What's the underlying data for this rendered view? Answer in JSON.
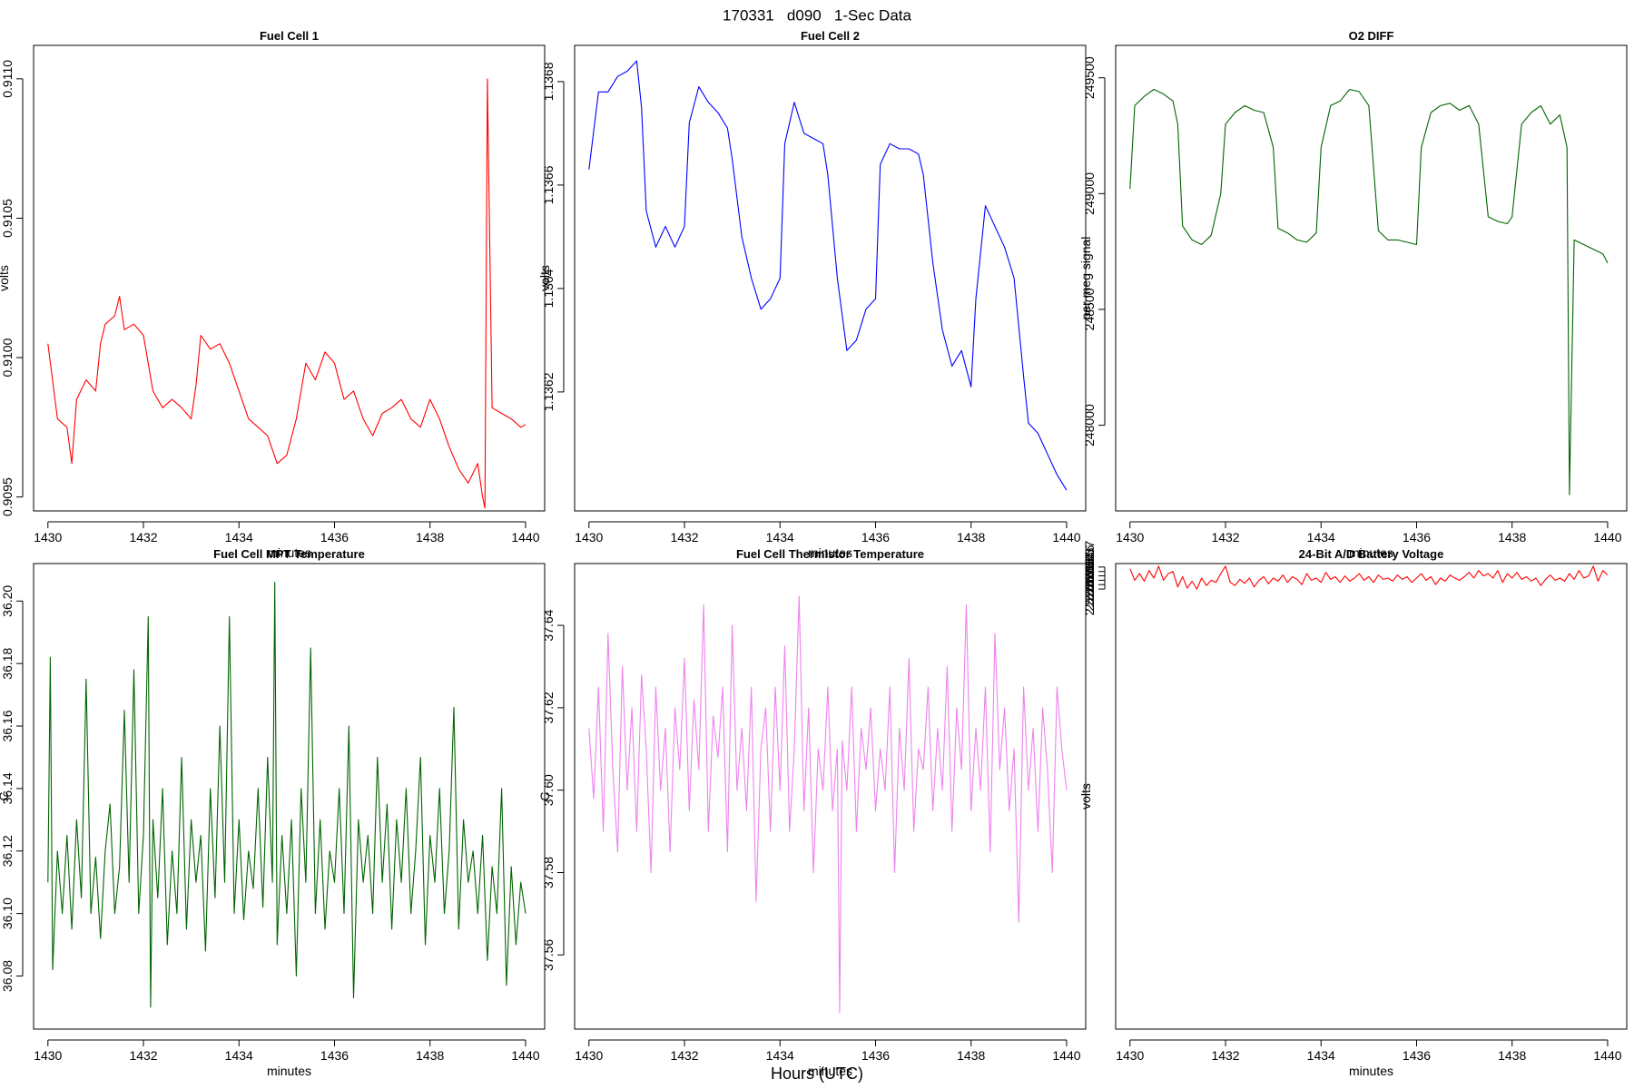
{
  "figure": {
    "title": "170331   d090   1-Sec Data",
    "xlabel": "Hours (UTC)"
  },
  "chart_data": [
    {
      "type": "line",
      "title": "Fuel Cell 1",
      "xlabel": "minutes",
      "ylabel": "volts",
      "color": "#ff0000",
      "xlim": [
        1429.7,
        1440.4
      ],
      "ylim": [
        0.90945,
        0.91112
      ],
      "xticks": [
        1430,
        1432,
        1434,
        1436,
        1438,
        1440
      ],
      "yticks": [
        0.9095,
        0.91,
        0.9105,
        0.911
      ],
      "ytick_labels": [
        "0.9095",
        "0.9100",
        "0.9105",
        "0.9110"
      ],
      "x": [
        1430.0,
        1430.2,
        1430.4,
        1430.5,
        1430.6,
        1430.8,
        1431.0,
        1431.1,
        1431.2,
        1431.4,
        1431.5,
        1431.6,
        1431.8,
        1432.0,
        1432.2,
        1432.4,
        1432.6,
        1432.8,
        1433.0,
        1433.1,
        1433.2,
        1433.4,
        1433.6,
        1433.8,
        1434.0,
        1434.2,
        1434.4,
        1434.6,
        1434.8,
        1435.0,
        1435.2,
        1435.4,
        1435.6,
        1435.8,
        1436.0,
        1436.2,
        1436.4,
        1436.6,
        1436.8,
        1437.0,
        1437.2,
        1437.4,
        1437.6,
        1437.8,
        1438.0,
        1438.2,
        1438.4,
        1438.6,
        1438.8,
        1439.0,
        1439.1,
        1439.15,
        1439.2,
        1439.3,
        1439.5,
        1439.7,
        1439.9,
        1440.0
      ],
      "y": [
        0.91005,
        0.90978,
        0.90975,
        0.90962,
        0.90985,
        0.90992,
        0.90988,
        0.91005,
        0.91012,
        0.91015,
        0.91022,
        0.9101,
        0.91012,
        0.91008,
        0.90988,
        0.90982,
        0.90985,
        0.90982,
        0.90978,
        0.9099,
        0.91008,
        0.91003,
        0.91005,
        0.90998,
        0.90988,
        0.90978,
        0.90975,
        0.90972,
        0.90962,
        0.90965,
        0.90978,
        0.90998,
        0.90992,
        0.91002,
        0.90998,
        0.90985,
        0.90988,
        0.90978,
        0.90972,
        0.9098,
        0.90982,
        0.90985,
        0.90978,
        0.90975,
        0.90985,
        0.90978,
        0.90968,
        0.9096,
        0.90955,
        0.90962,
        0.9095,
        0.90946,
        0.911,
        0.90982,
        0.9098,
        0.90978,
        0.90975,
        0.90976
      ]
    },
    {
      "type": "line",
      "title": "Fuel Cell 2",
      "xlabel": "minutes",
      "ylabel": "volts",
      "color": "#0000ff",
      "xlim": [
        1429.7,
        1440.4
      ],
      "ylim": [
        1.13597,
        1.13687
      ],
      "xticks": [
        1430,
        1432,
        1434,
        1436,
        1438,
        1440
      ],
      "yticks": [
        1.1362,
        1.1364,
        1.1366,
        1.1368
      ],
      "ytick_labels": [
        "1.1362",
        "1.1364",
        "1.1366",
        "1.1368"
      ],
      "x": [
        1430.0,
        1430.2,
        1430.4,
        1430.6,
        1430.8,
        1431.0,
        1431.1,
        1431.2,
        1431.4,
        1431.6,
        1431.8,
        1432.0,
        1432.1,
        1432.3,
        1432.5,
        1432.7,
        1432.9,
        1433.0,
        1433.2,
        1433.4,
        1433.6,
        1433.8,
        1434.0,
        1434.1,
        1434.3,
        1434.5,
        1434.7,
        1434.9,
        1435.0,
        1435.2,
        1435.4,
        1435.6,
        1435.8,
        1436.0,
        1436.1,
        1436.3,
        1436.5,
        1436.7,
        1436.9,
        1437.0,
        1437.2,
        1437.4,
        1437.6,
        1437.8,
        1438.0,
        1438.1,
        1438.3,
        1438.5,
        1438.7,
        1438.9,
        1439.1,
        1439.2,
        1439.4,
        1439.6,
        1439.8,
        1440.0
      ],
      "y": [
        1.13663,
        1.13678,
        1.13678,
        1.13681,
        1.13682,
        1.13684,
        1.13675,
        1.13655,
        1.13648,
        1.13652,
        1.13648,
        1.13652,
        1.13672,
        1.13679,
        1.13676,
        1.13674,
        1.13671,
        1.13665,
        1.1365,
        1.13642,
        1.13636,
        1.13638,
        1.13642,
        1.13668,
        1.13676,
        1.1367,
        1.13669,
        1.13668,
        1.13662,
        1.13642,
        1.13628,
        1.1363,
        1.13636,
        1.13638,
        1.13664,
        1.13668,
        1.13667,
        1.13667,
        1.13666,
        1.13662,
        1.13645,
        1.13632,
        1.13625,
        1.13628,
        1.13621,
        1.13638,
        1.13656,
        1.13652,
        1.13648,
        1.13642,
        1.13623,
        1.13614,
        1.13612,
        1.13608,
        1.13604,
        1.13601
      ]
    },
    {
      "type": "line",
      "title": "O2 DIFF",
      "xlabel": "minutes",
      "ylabel": "per meg signal",
      "color": "#006400",
      "xlim": [
        1429.7,
        1440.4
      ],
      "ylim": [
        247630,
        249640
      ],
      "xticks": [
        1430,
        1432,
        1434,
        1436,
        1438,
        1440
      ],
      "yticks": [
        248000,
        248500,
        249000,
        249500
      ],
      "ytick_labels": [
        "248000",
        "248500",
        "249000",
        "249500"
      ],
      "x": [
        1430.0,
        1430.1,
        1430.3,
        1430.5,
        1430.7,
        1430.9,
        1431.0,
        1431.1,
        1431.3,
        1431.5,
        1431.7,
        1431.9,
        1432.0,
        1432.2,
        1432.4,
        1432.6,
        1432.8,
        1433.0,
        1433.1,
        1433.3,
        1433.5,
        1433.7,
        1433.9,
        1434.0,
        1434.2,
        1434.4,
        1434.6,
        1434.8,
        1435.0,
        1435.2,
        1435.4,
        1435.6,
        1435.8,
        1436.0,
        1436.1,
        1436.3,
        1436.5,
        1436.7,
        1436.9,
        1437.1,
        1437.3,
        1437.5,
        1437.7,
        1437.9,
        1438.0,
        1438.2,
        1438.4,
        1438.6,
        1438.8,
        1439.0,
        1439.15,
        1439.2,
        1439.3,
        1439.5,
        1439.7,
        1439.9,
        1440.0
      ],
      "y": [
        249020,
        249380,
        249420,
        249450,
        249430,
        249400,
        249300,
        248860,
        248800,
        248780,
        248820,
        249000,
        249300,
        249350,
        249380,
        249360,
        249350,
        249200,
        248850,
        248830,
        248800,
        248790,
        248830,
        249200,
        249380,
        249400,
        249450,
        249440,
        249380,
        248840,
        248800,
        248800,
        248790,
        248780,
        249200,
        249350,
        249380,
        249390,
        249360,
        249380,
        249300,
        248900,
        248880,
        248870,
        248900,
        249300,
        249350,
        249380,
        249300,
        249340,
        249200,
        247700,
        248800,
        248780,
        248760,
        248740,
        248700
      ]
    },
    {
      "type": "line",
      "title": "Fuel Cell MPT Temperature",
      "xlabel": "minutes",
      "ylabel": "C",
      "color": "#006400",
      "xlim": [
        1429.7,
        1440.4
      ],
      "ylim": [
        36.063,
        36.212
      ],
      "xticks": [
        1430,
        1432,
        1434,
        1436,
        1438,
        1440
      ],
      "yticks": [
        36.08,
        36.1,
        36.12,
        36.14,
        36.16,
        36.18,
        36.2
      ],
      "ytick_labels": [
        "36.08",
        "36.10",
        "36.12",
        "36.14",
        "36.16",
        "36.18",
        "36.20"
      ],
      "x": [
        1430.0,
        1430.05,
        1430.1,
        1430.2,
        1430.3,
        1430.4,
        1430.5,
        1430.6,
        1430.7,
        1430.8,
        1430.9,
        1431.0,
        1431.1,
        1431.2,
        1431.3,
        1431.4,
        1431.5,
        1431.6,
        1431.7,
        1431.8,
        1431.9,
        1432.0,
        1432.1,
        1432.15,
        1432.2,
        1432.3,
        1432.4,
        1432.5,
        1432.6,
        1432.7,
        1432.8,
        1432.9,
        1433.0,
        1433.1,
        1433.2,
        1433.3,
        1433.4,
        1433.5,
        1433.6,
        1433.7,
        1433.8,
        1433.9,
        1434.0,
        1434.1,
        1434.2,
        1434.3,
        1434.4,
        1434.5,
        1434.6,
        1434.7,
        1434.75,
        1434.8,
        1434.9,
        1435.0,
        1435.1,
        1435.2,
        1435.3,
        1435.4,
        1435.5,
        1435.6,
        1435.7,
        1435.8,
        1435.9,
        1436.0,
        1436.1,
        1436.2,
        1436.3,
        1436.4,
        1436.5,
        1436.6,
        1436.7,
        1436.8,
        1436.9,
        1437.0,
        1437.1,
        1437.2,
        1437.3,
        1437.4,
        1437.5,
        1437.6,
        1437.7,
        1437.8,
        1437.9,
        1438.0,
        1438.1,
        1438.2,
        1438.3,
        1438.4,
        1438.5,
        1438.6,
        1438.7,
        1438.8,
        1438.9,
        1439.0,
        1439.1,
        1439.2,
        1439.3,
        1439.4,
        1439.5,
        1439.6,
        1439.7,
        1439.8,
        1439.9,
        1440.0
      ],
      "y": [
        36.11,
        36.182,
        36.082,
        36.12,
        36.1,
        36.125,
        36.095,
        36.13,
        36.105,
        36.175,
        36.1,
        36.118,
        36.092,
        36.12,
        36.135,
        36.1,
        36.115,
        36.165,
        36.11,
        36.178,
        36.1,
        36.125,
        36.195,
        36.07,
        36.13,
        36.105,
        36.14,
        36.09,
        36.12,
        36.1,
        36.15,
        36.095,
        36.13,
        36.11,
        36.125,
        36.088,
        36.14,
        36.105,
        36.16,
        36.11,
        36.195,
        36.1,
        36.13,
        36.098,
        36.12,
        36.108,
        36.14,
        36.102,
        36.15,
        36.11,
        36.206,
        36.09,
        36.125,
        36.1,
        36.13,
        36.08,
        36.14,
        36.11,
        36.185,
        36.1,
        36.13,
        36.095,
        36.12,
        36.11,
        36.14,
        36.1,
        36.16,
        36.073,
        36.13,
        36.11,
        36.125,
        36.1,
        36.15,
        36.11,
        36.135,
        36.095,
        36.13,
        36.11,
        36.14,
        36.1,
        36.12,
        36.15,
        36.09,
        36.125,
        36.11,
        36.14,
        36.1,
        36.12,
        36.166,
        36.095,
        36.13,
        36.11,
        36.12,
        36.1,
        36.125,
        36.085,
        36.115,
        36.1,
        36.14,
        36.077,
        36.115,
        36.09,
        36.11,
        36.1
      ]
    },
    {
      "type": "line",
      "title": "Fuel Cell Thermistor Temperature",
      "xlabel": "minutes",
      "ylabel": "C",
      "color": "#ee82ee",
      "xlim": [
        1429.7,
        1440.4
      ],
      "ylim": [
        37.542,
        37.655
      ],
      "xticks": [
        1430,
        1432,
        1434,
        1436,
        1438,
        1440
      ],
      "yticks": [
        37.56,
        37.58,
        37.6,
        37.62,
        37.64
      ],
      "ytick_labels": [
        "37.56",
        "37.58",
        "37.60",
        "37.62",
        "37.64"
      ],
      "x": [
        1430.0,
        1430.1,
        1430.2,
        1430.3,
        1430.4,
        1430.5,
        1430.6,
        1430.7,
        1430.8,
        1430.9,
        1431.0,
        1431.1,
        1431.2,
        1431.3,
        1431.4,
        1431.5,
        1431.6,
        1431.7,
        1431.8,
        1431.9,
        1432.0,
        1432.1,
        1432.2,
        1432.3,
        1432.4,
        1432.5,
        1432.6,
        1432.7,
        1432.8,
        1432.9,
        1433.0,
        1433.1,
        1433.2,
        1433.3,
        1433.4,
        1433.5,
        1433.6,
        1433.7,
        1433.8,
        1433.9,
        1434.0,
        1434.1,
        1434.2,
        1434.3,
        1434.4,
        1434.5,
        1434.6,
        1434.7,
        1434.8,
        1434.9,
        1435.0,
        1435.1,
        1435.2,
        1435.25,
        1435.3,
        1435.4,
        1435.5,
        1435.6,
        1435.7,
        1435.8,
        1435.9,
        1436.0,
        1436.1,
        1436.2,
        1436.3,
        1436.4,
        1436.5,
        1436.6,
        1436.7,
        1436.8,
        1436.9,
        1437.0,
        1437.1,
        1437.2,
        1437.3,
        1437.4,
        1437.5,
        1437.6,
        1437.7,
        1437.8,
        1437.9,
        1438.0,
        1438.1,
        1438.2,
        1438.3,
        1438.4,
        1438.5,
        1438.6,
        1438.7,
        1438.8,
        1438.9,
        1439.0,
        1439.1,
        1439.2,
        1439.3,
        1439.4,
        1439.5,
        1439.6,
        1439.7,
        1439.8,
        1439.9,
        1440.0
      ],
      "y": [
        37.615,
        37.598,
        37.625,
        37.59,
        37.638,
        37.605,
        37.585,
        37.63,
        37.6,
        37.62,
        37.59,
        37.628,
        37.61,
        37.58,
        37.625,
        37.6,
        37.615,
        37.585,
        37.62,
        37.605,
        37.632,
        37.595,
        37.622,
        37.605,
        37.645,
        37.59,
        37.618,
        37.608,
        37.625,
        37.585,
        37.64,
        37.6,
        37.615,
        37.595,
        37.625,
        37.573,
        37.61,
        37.62,
        37.59,
        37.625,
        37.6,
        37.635,
        37.59,
        37.61,
        37.647,
        37.595,
        37.62,
        37.58,
        37.61,
        37.6,
        37.625,
        37.595,
        37.61,
        37.546,
        37.612,
        37.6,
        37.625,
        37.59,
        37.615,
        37.605,
        37.62,
        37.595,
        37.61,
        37.6,
        37.625,
        37.58,
        37.615,
        37.6,
        37.632,
        37.59,
        37.61,
        37.605,
        37.625,
        37.595,
        37.615,
        37.6,
        37.63,
        37.59,
        37.62,
        37.605,
        37.645,
        37.595,
        37.615,
        37.6,
        37.625,
        37.585,
        37.638,
        37.605,
        37.62,
        37.595,
        37.61,
        37.568,
        37.625,
        37.6,
        37.615,
        37.59,
        37.62,
        37.605,
        37.58,
        37.625,
        37.61,
        37.6
      ]
    },
    {
      "type": "line",
      "title": "24-Bit A/D Battery Voltage",
      "xlabel": "minutes",
      "ylabel": "volts",
      "color": "#ff0000",
      "xlim": [
        1429.7,
        1440.4
      ],
      "ylim": [
        2.5265318,
        2.5266378
      ],
      "xticks": [
        1430,
        1432,
        1434,
        1436,
        1438,
        1440
      ],
      "yticks": [
        2.526632,
        2.526633,
        2.526634,
        2.526635,
        2.526636,
        2.526637
      ],
      "ytick_labels": [
        "2.526632",
        "2.526633",
        "2.526634",
        "2.526635",
        "2.526636",
        "2.526637"
      ],
      "x": [
        1430.0,
        1430.1,
        1430.2,
        1430.3,
        1430.4,
        1430.5,
        1430.6,
        1430.7,
        1430.8,
        1430.9,
        1431.0,
        1431.1,
        1431.2,
        1431.3,
        1431.4,
        1431.5,
        1431.6,
        1431.7,
        1431.8,
        1431.9,
        1432.0,
        1432.1,
        1432.2,
        1432.3,
        1432.4,
        1432.5,
        1432.6,
        1432.7,
        1432.8,
        1432.9,
        1433.0,
        1433.1,
        1433.2,
        1433.3,
        1433.4,
        1433.5,
        1433.6,
        1433.7,
        1433.8,
        1433.9,
        1434.0,
        1434.1,
        1434.2,
        1434.3,
        1434.4,
        1434.5,
        1434.6,
        1434.7,
        1434.8,
        1434.9,
        1435.0,
        1435.1,
        1435.2,
        1435.3,
        1435.4,
        1435.5,
        1435.6,
        1435.7,
        1435.8,
        1435.9,
        1436.0,
        1436.1,
        1436.2,
        1436.3,
        1436.4,
        1436.5,
        1436.6,
        1436.7,
        1436.8,
        1436.9,
        1437.0,
        1437.1,
        1437.2,
        1437.3,
        1437.4,
        1437.5,
        1437.6,
        1437.7,
        1437.8,
        1437.9,
        1438.0,
        1438.1,
        1438.2,
        1438.3,
        1438.4,
        1438.5,
        1438.6,
        1438.7,
        1438.8,
        1438.9,
        1439.0,
        1439.1,
        1439.2,
        1439.3,
        1439.4,
        1439.5,
        1439.6,
        1439.7,
        1439.8,
        1439.9,
        1440.0
      ],
      "y": [
        2.5266366,
        2.526634,
        2.5266355,
        2.5266338,
        2.5266362,
        2.5266345,
        2.5266372,
        2.526634,
        2.5266355,
        2.526636,
        2.5266325,
        2.5266348,
        2.5266322,
        2.5266338,
        2.526632,
        2.5266345,
        2.5266328,
        2.526634,
        2.5266335,
        2.5266355,
        2.5266372,
        2.5266335,
        2.5266328,
        2.5266342,
        2.5266333,
        2.5266345,
        2.5266325,
        2.526634,
        2.5266348,
        2.5266332,
        2.5266345,
        2.5266338,
        2.5266352,
        2.5266335,
        2.5266348,
        2.5266342,
        2.526633,
        2.5266355,
        2.526634,
        2.5266345,
        2.5266335,
        2.5266358,
        2.5266342,
        2.5266348,
        2.5266335,
        2.526635,
        2.5266338,
        2.5266345,
        2.5266355,
        2.526634,
        2.5266348,
        2.5266335,
        2.5266352,
        2.5266342,
        2.5266345,
        2.5266338,
        2.5266352,
        2.5266342,
        2.5266348,
        2.5266335,
        2.5266345,
        2.5266355,
        2.526634,
        2.5266348,
        2.526633,
        2.5266345,
        2.5266338,
        2.5266352,
        2.5266345,
        2.526634,
        2.5266348,
        2.5266358,
        2.5266345,
        2.5266362,
        2.526635,
        2.5266355,
        2.5266345,
        2.5266362,
        2.5266335,
        2.5266355,
        2.5266345,
        2.5266358,
        2.5266342,
        2.5266348,
        2.5266338,
        2.5266345,
        2.5266328,
        2.5266342,
        2.5266352,
        2.526634,
        2.5266345,
        2.5266338,
        2.5266355,
        2.5266342,
        2.5266362,
        2.5266345,
        2.526635,
        2.5266372,
        2.5266338,
        2.5266362,
        2.5266352
      ]
    }
  ]
}
